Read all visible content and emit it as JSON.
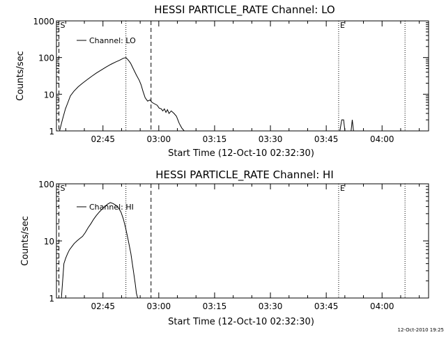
{
  "footer": {
    "timestamp": "12-Oct-2010 19:25"
  },
  "chart_data": [
    {
      "type": "line",
      "title": "HESSI PARTICLE_RATE Channel: LO",
      "xlabel": "Start Time (12-Oct-10 02:32:30)",
      "ylabel": "Counts/sec",
      "yscale": "log",
      "ylim": [
        1,
        1000
      ],
      "xlim": [
        "02:32:30",
        "04:12:30"
      ],
      "xticks": [
        "02:45",
        "03:00",
        "03:15",
        "03:30",
        "03:45",
        "04:00"
      ],
      "yticks": [
        "1",
        "10",
        "100",
        "1000"
      ],
      "legend": "Channel: LO",
      "legend_position": "top-left",
      "markers": [
        {
          "label": "S",
          "time": "02:33:10",
          "style": "dashed"
        },
        {
          "label": "",
          "time": "02:51:10",
          "style": "dotted"
        },
        {
          "label": "",
          "time": "02:57:55",
          "style": "dashed"
        },
        {
          "label": "E",
          "time": "03:48:20",
          "style": "dotted"
        },
        {
          "label": "",
          "time": "04:06:10",
          "style": "dotted"
        }
      ],
      "series": [
        {
          "segments": [
            {
              "x": [
                "02:33:20",
                "02:34:05",
                "02:34:55",
                "02:35:35",
                "02:36:15",
                "02:37:10",
                "02:38:20",
                "02:39:30",
                "02:40:45",
                "02:42:00",
                "02:43:15",
                "02:44:35",
                "02:45:50",
                "02:47:05",
                "02:48:20",
                "02:49:30",
                "02:50:25",
                "02:51:10",
                "02:51:50",
                "02:52:25",
                "02:53:20",
                "02:54:00",
                "02:54:45",
                "02:55:15",
                "02:55:45",
                "02:56:20",
                "02:57:00",
                "02:57:40",
                "02:58:10",
                "02:58:50",
                "02:59:35",
                "03:00:05",
                "03:00:40",
                "03:01:05",
                "03:01:30",
                "03:01:55",
                "03:02:20",
                "03:02:45",
                "03:03:20",
                "03:04:05",
                "03:04:45",
                "03:05:30",
                "03:06:10",
                "03:06:50"
              ],
              "y": [
                1,
                2,
                4,
                6,
                9,
                12,
                16,
                20,
                25,
                31,
                38,
                46,
                55,
                65,
                75,
                85,
                95,
                100,
                85,
                70,
                45,
                33,
                24,
                18,
                12,
                8,
                6.5,
                7,
                6,
                5.5,
                5,
                4.2,
                4,
                3.5,
                4,
                3.2,
                3.8,
                3,
                3.5,
                3,
                2.5,
                1.6,
                1.2,
                1
              ]
            },
            {
              "x": [
                "03:48:40",
                "03:49:10",
                "03:49:40",
                "03:50:00",
                "03:51:40",
                "03:52:00",
                "03:52:20"
              ],
              "y": [
                1,
                2,
                2,
                1,
                1,
                2,
                1
              ]
            }
          ]
        }
      ]
    },
    {
      "type": "line",
      "title": "HESSI PARTICLE_RATE Channel: HI",
      "xlabel": "Start Time (12-Oct-10 02:32:30)",
      "ylabel": "Counts/sec",
      "yscale": "log",
      "ylim": [
        1,
        100
      ],
      "xlim": [
        "02:32:30",
        "04:12:30"
      ],
      "xticks": [
        "02:45",
        "03:00",
        "03:15",
        "03:30",
        "03:45",
        "04:00"
      ],
      "yticks": [
        "1",
        "10",
        "100"
      ],
      "legend": "Channel: HI",
      "legend_position": "top-left",
      "markers": [
        {
          "label": "S",
          "time": "02:33:10",
          "style": "dashed"
        },
        {
          "label": "",
          "time": "02:51:10",
          "style": "dotted"
        },
        {
          "label": "",
          "time": "02:57:55",
          "style": "dashed"
        },
        {
          "label": "E",
          "time": "03:48:20",
          "style": "dotted"
        },
        {
          "label": "",
          "time": "04:06:10",
          "style": "dotted"
        }
      ],
      "series": [
        {
          "segments": [
            {
              "x": [
                "02:33:50",
                "02:34:10",
                "02:34:30",
                "02:35:00",
                "02:35:30",
                "02:36:00",
                "02:36:40",
                "02:37:15",
                "02:38:00",
                "02:38:45",
                "02:39:30",
                "02:40:15",
                "02:41:00",
                "02:41:45",
                "02:42:30",
                "02:43:15",
                "02:44:00",
                "02:44:45",
                "02:45:30",
                "02:46:15",
                "02:47:00",
                "02:47:45",
                "02:48:30",
                "02:49:10",
                "02:49:50",
                "02:50:30",
                "02:51:10",
                "02:51:50",
                "02:52:30",
                "02:53:10",
                "02:53:40",
                "02:54:00",
                "02:54:20"
              ],
              "y": [
                1,
                2,
                4,
                5,
                6,
                7,
                8,
                9,
                10,
                11,
                12,
                14,
                17,
                20,
                24,
                28,
                32,
                36,
                40,
                44,
                47,
                45,
                42,
                38,
                32,
                24,
                16,
                10,
                6,
                3,
                1.8,
                1.2,
                1
              ]
            }
          ]
        }
      ]
    }
  ]
}
